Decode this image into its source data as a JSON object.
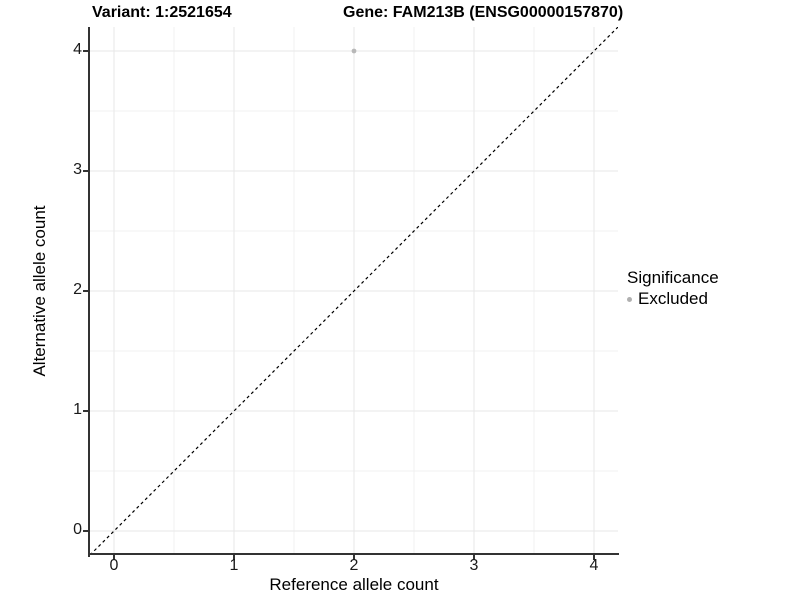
{
  "titles": {
    "variant": "Variant: 1:2521654",
    "gene": "Gene: FAM213B (ENSG00000157870)"
  },
  "axes": {
    "x_label": "Reference allele count",
    "y_label": "Alternative allele count"
  },
  "legend": {
    "title": "Significance",
    "items": [
      {
        "label": "Excluded",
        "color": "#b0b0b0"
      }
    ]
  },
  "colors": {
    "axis_line": "#333333",
    "grid_major": "#e7e7e7",
    "grid_minor": "#f1f1f1",
    "reference_line": "#000000",
    "point": "#b8b8b8",
    "background": "#ffffff"
  },
  "chart_data": {
    "type": "scatter",
    "title": "Variant: 1:2521654   Gene: FAM213B (ENSG00000157870)",
    "xlabel": "Reference allele count",
    "ylabel": "Alternative allele count",
    "xlim": [
      -0.2,
      4.2
    ],
    "ylim": [
      -0.2,
      4.2
    ],
    "x_ticks": [
      0,
      1,
      2,
      3,
      4
    ],
    "y_ticks": [
      0,
      1,
      2,
      3,
      4
    ],
    "minor_ticks": [
      0.5,
      1.5,
      2.5,
      3.5
    ],
    "grid": true,
    "legend_title": "Significance",
    "legend_position": "right",
    "series": [
      {
        "name": "Excluded",
        "color": "#b8b8b8",
        "points": [
          {
            "x": 2,
            "y": 4
          }
        ]
      }
    ],
    "reference_line": {
      "kind": "identity",
      "style": "dashed",
      "color": "#000000"
    }
  }
}
